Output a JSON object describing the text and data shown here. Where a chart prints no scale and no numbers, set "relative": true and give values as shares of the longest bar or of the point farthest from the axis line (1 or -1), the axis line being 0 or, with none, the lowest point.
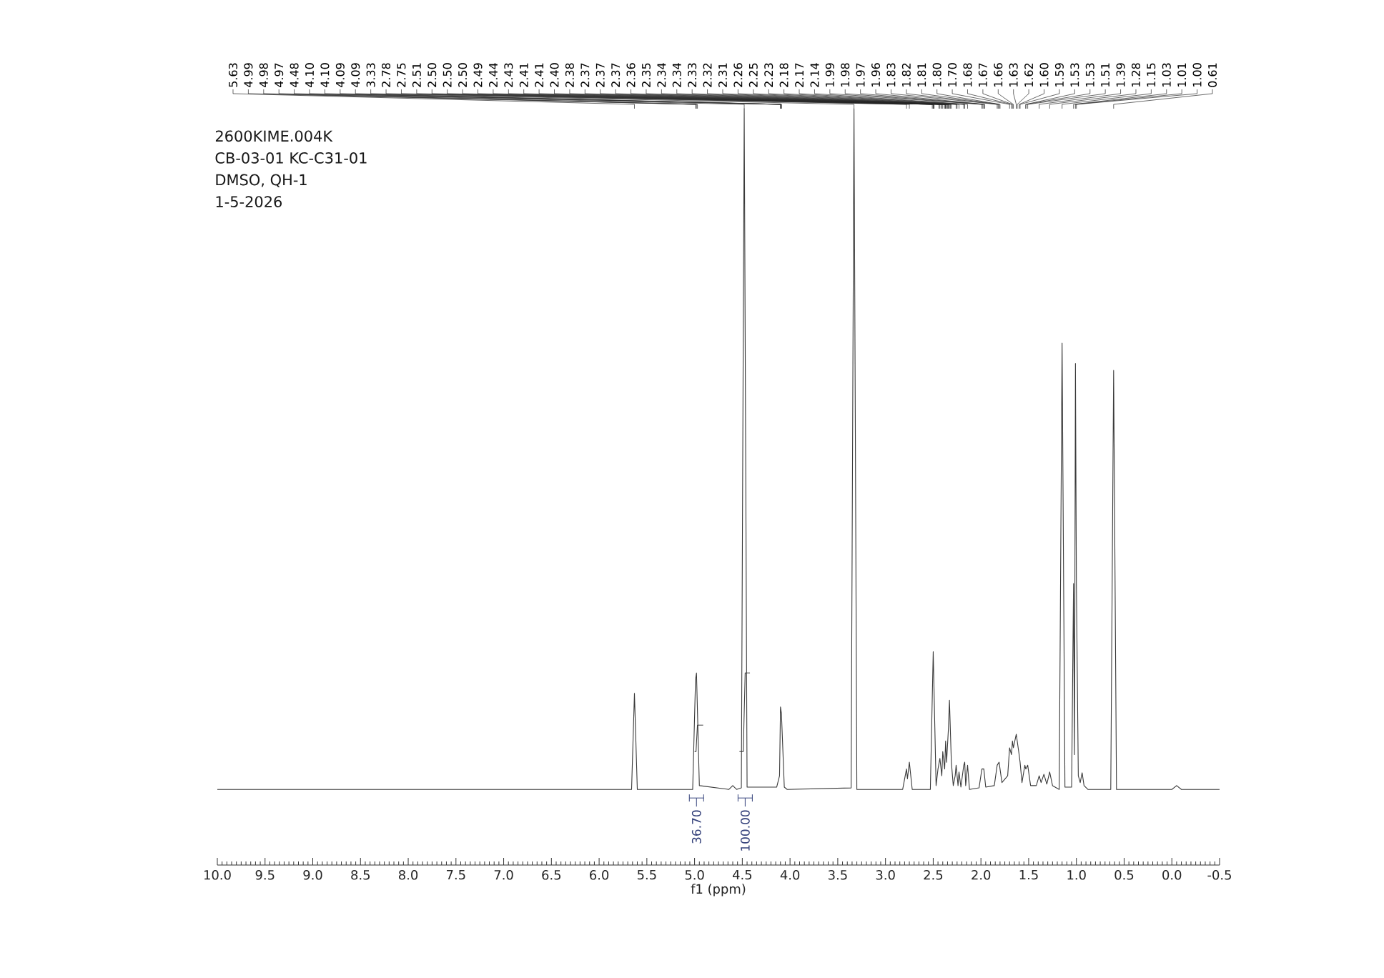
{
  "chart_data": {
    "type": "line",
    "relative": true,
    "xlabel": "f1 (ppm)",
    "xlim": [
      10.0,
      -0.5
    ],
    "xticks": [
      {
        "value": 10,
        "label": "10.0"
      },
      9.5,
      {
        "value": 9,
        "label": "9.0"
      },
      8.5,
      {
        "value": 8,
        "label": "8.0"
      },
      7.5,
      {
        "value": 7,
        "label": "7.0"
      },
      6.5,
      {
        "value": 6,
        "label": "6.0"
      },
      5.5,
      {
        "value": 5,
        "label": "5.0"
      },
      4.5,
      {
        "value": 4,
        "label": "4.0"
      },
      3.5,
      {
        "value": 3,
        "label": "3.0"
      },
      2.5,
      {
        "value": 2,
        "label": "2.0"
      },
      1.5,
      {
        "value": 1,
        "label": "1.0"
      },
      0.5,
      {
        "value": 0,
        "label": "0.0"
      },
      -0.5
    ],
    "series": [
      {
        "color": "#3a3a3a",
        "x": [
          10.0,
          5.66,
          5.63,
          5.6,
          5.02,
          4.99,
          4.98,
          4.95,
          4.64,
          4.6,
          4.56,
          4.51,
          4.48,
          4.45,
          4.14,
          4.11,
          4.1,
          4.09,
          4.06,
          4.03,
          3.36,
          3.33,
          3.3,
          2.82,
          2.78,
          2.77,
          2.75,
          2.72,
          2.53,
          2.5,
          2.47,
          2.45,
          2.43,
          2.41,
          2.4,
          2.38,
          2.37,
          2.36,
          2.34,
          2.33,
          2.31,
          2.29,
          2.27,
          2.26,
          2.24,
          2.23,
          2.21,
          2.18,
          2.17,
          2.16,
          2.14,
          2.12,
          2.02,
          1.99,
          1.97,
          1.95,
          1.86,
          1.83,
          1.81,
          1.78,
          1.72,
          1.7,
          1.68,
          1.67,
          1.66,
          1.63,
          1.62,
          1.6,
          1.59,
          1.57,
          1.54,
          1.53,
          1.51,
          1.48,
          1.42,
          1.39,
          1.37,
          1.34,
          1.31,
          1.28,
          1.25,
          1.18,
          1.15,
          1.12,
          1.05,
          1.03,
          1.02,
          1.01,
          1.0,
          0.98,
          0.96,
          0.94,
          0.92,
          0.88,
          0.64,
          0.61,
          0.58,
          0.0,
          -0.05,
          -0.1,
          -0.5
        ],
        "values": [
          0.1,
          0.1,
          0.227,
          0.1,
          0.1,
          0.245,
          0.254,
          0.105,
          0.1,
          0.105,
          0.1,
          0.102,
          1,
          0.103,
          0.103,
          0.118,
          0.209,
          0.2,
          0.103,
          0.1,
          0.102,
          1,
          0.1,
          0.1,
          0.127,
          0.114,
          0.136,
          0.1,
          0.1,
          0.282,
          0.105,
          0.127,
          0.141,
          0.118,
          0.15,
          0.127,
          0.164,
          0.136,
          0.182,
          0.218,
          0.136,
          0.105,
          0.118,
          0.132,
          0.105,
          0.123,
          0.103,
          0.132,
          0.136,
          0.105,
          0.132,
          0.1,
          0.102,
          0.127,
          0.127,
          0.103,
          0.105,
          0.132,
          0.136,
          0.109,
          0.118,
          0.155,
          0.146,
          0.164,
          0.155,
          0.173,
          0.164,
          0.146,
          0.136,
          0.109,
          0.132,
          0.127,
          0.132,
          0.105,
          0.105,
          0.118,
          0.109,
          0.12,
          0.107,
          0.123,
          0.105,
          0.1,
          0.69,
          0.103,
          0.103,
          0.372,
          0.146,
          0.663,
          0.372,
          0.118,
          0.109,
          0.122,
          0.105,
          0.1,
          0.1,
          0.654,
          0.1,
          0.1,
          0.105,
          0.1,
          0.1
        ]
      },
      {
        "color": "#3a3a3a",
        "x": [
          5.0,
          4.985,
          4.97,
          4.91
        ],
        "values": [
          0.15,
          0.15,
          0.185,
          0.185
        ]
      },
      {
        "color": "#3a3a3a",
        "x": [
          4.53,
          4.49,
          4.47,
          4.42
        ],
        "values": [
          0.15,
          0.15,
          0.254,
          0.254
        ]
      }
    ],
    "annotations": [
      "2600KIME.004K",
      "CB-03-01 KC-C31-01",
      "DMSO, QH-1",
      "1-5-2026",
      {
        "text": "5.63",
        "x": 5.63
      },
      {
        "text": "4.99",
        "x": 4.99
      },
      {
        "text": "4.98",
        "x": 4.98
      },
      {
        "text": "4.97",
        "x": 4.97
      },
      {
        "text": "4.48",
        "x": 4.48
      },
      {
        "text": "4.10",
        "x": 4.1
      },
      {
        "text": "4.10",
        "x": 4.1
      },
      {
        "text": "4.09",
        "x": 4.09
      },
      {
        "text": "4.09",
        "x": 4.09
      },
      {
        "text": "3.33",
        "x": 3.33
      },
      {
        "text": "2.78",
        "x": 2.78
      },
      {
        "text": "2.75",
        "x": 2.75
      },
      {
        "text": "2.51",
        "x": 2.51
      },
      {
        "text": "2.50",
        "x": 2.5
      },
      {
        "text": "2.50",
        "x": 2.5
      },
      {
        "text": "2.50",
        "x": 2.5
      },
      {
        "text": "2.49",
        "x": 2.49
      },
      {
        "text": "2.44",
        "x": 2.44
      },
      {
        "text": "2.43",
        "x": 2.43
      },
      {
        "text": "2.41",
        "x": 2.41
      },
      {
        "text": "2.41",
        "x": 2.41
      },
      {
        "text": "2.40",
        "x": 2.4
      },
      {
        "text": "2.38",
        "x": 2.38
      },
      {
        "text": "2.37",
        "x": 2.37
      },
      {
        "text": "2.37",
        "x": 2.37
      },
      {
        "text": "2.37",
        "x": 2.37
      },
      {
        "text": "2.36",
        "x": 2.36
      },
      {
        "text": "2.35",
        "x": 2.35
      },
      {
        "text": "2.34",
        "x": 2.34
      },
      {
        "text": "2.34",
        "x": 2.34
      },
      {
        "text": "2.33",
        "x": 2.33
      },
      {
        "text": "2.32",
        "x": 2.32
      },
      {
        "text": "2.31",
        "x": 2.31
      },
      {
        "text": "2.26",
        "x": 2.26
      },
      {
        "text": "2.25",
        "x": 2.25
      },
      {
        "text": "2.23",
        "x": 2.23
      },
      {
        "text": "2.18",
        "x": 2.18
      },
      {
        "text": "2.17",
        "x": 2.17
      },
      {
        "text": "2.14",
        "x": 2.14
      },
      {
        "text": "1.99",
        "x": 1.99
      },
      {
        "text": "1.98",
        "x": 1.98
      },
      {
        "text": "1.97",
        "x": 1.97
      },
      {
        "text": "1.96",
        "x": 1.96
      },
      {
        "text": "1.83",
        "x": 1.83
      },
      {
        "text": "1.82",
        "x": 1.82
      },
      {
        "text": "1.81",
        "x": 1.81
      },
      {
        "text": "1.80",
        "x": 1.8
      },
      {
        "text": "1.70",
        "x": 1.7
      },
      {
        "text": "1.68",
        "x": 1.68
      },
      {
        "text": "1.67",
        "x": 1.67
      },
      {
        "text": "1.66",
        "x": 1.66
      },
      {
        "text": "1.63",
        "x": 1.63
      },
      {
        "text": "1.62",
        "x": 1.62
      },
      {
        "text": "1.60",
        "x": 1.6
      },
      {
        "text": "1.59",
        "x": 1.59
      },
      {
        "text": "1.53",
        "x": 1.53
      },
      {
        "text": "1.53",
        "x": 1.53
      },
      {
        "text": "1.51",
        "x": 1.51
      },
      {
        "text": "1.39",
        "x": 1.39
      },
      {
        "text": "1.28",
        "x": 1.28
      },
      {
        "text": "1.15",
        "x": 1.15
      },
      {
        "text": "1.03",
        "x": 1.03
      },
      {
        "text": "1.01",
        "x": 1.01
      },
      {
        "text": "1.00",
        "x": 1.0
      },
      {
        "text": "0.61",
        "x": 0.61
      },
      {
        "text": "36.70",
        "x": 4.98,
        "y": 0.1
      },
      {
        "text": "100.00",
        "x": 4.47,
        "y": 0.1
      }
    ]
  }
}
